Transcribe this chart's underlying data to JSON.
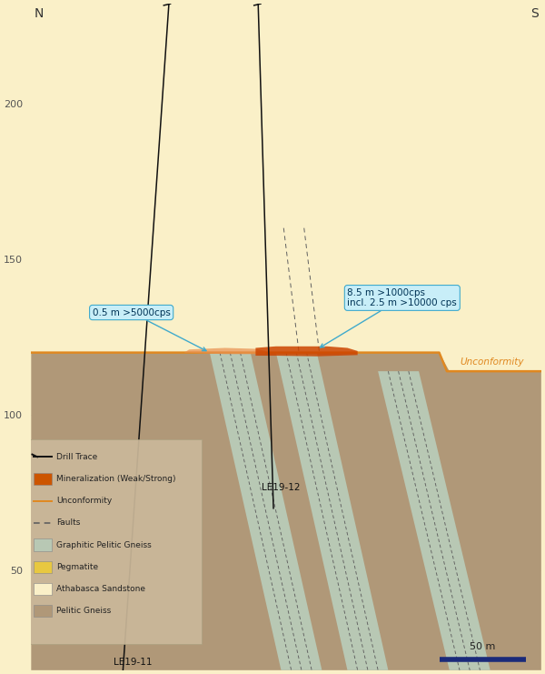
{
  "fig_width": 6.0,
  "fig_height": 7.41,
  "dpi": 100,
  "bg_color": "#faf0c8",
  "pelitic_color": "#b09878",
  "graphitic_color": "#b8c8b4",
  "sandstone_color": "#faf0c8",
  "unconformity_line_color": "#e08820",
  "mineralization_weak_color": "#e89050",
  "mineralization_strong_color": "#cc4400",
  "drill_trace_color": "#111111",
  "fault_color": "#606060",
  "annotation_box_color": "#c8eef8",
  "annotation_edge_color": "#40aacc",
  "annotation_text_color": "#003355",
  "label_N": "N",
  "label_S": "S",
  "unconformity_label": "Unconformity",
  "drill_label_12": "LE19-12",
  "drill_label_11": "LE19-11",
  "ann1_text": "0.5 m >5000cps",
  "ann2_line1": "8.5 m >1000cps",
  "ann2_line2": "incl. 2.5 m >10000 cps",
  "scalebar_label": "50 m",
  "legend_items": [
    {
      "label": "Drill Trace",
      "type": "line_arrow",
      "color": "#111111"
    },
    {
      "label": "Mineralization (Weak/Strong)",
      "type": "rect",
      "color": "#cc5500"
    },
    {
      "label": "Unconformity",
      "type": "line",
      "color": "#e08820"
    },
    {
      "label": "Faults",
      "type": "dashed",
      "color": "#606060"
    },
    {
      "label": "Graphitic Pelitic Gneiss",
      "type": "rect",
      "color": "#b8c8b4"
    },
    {
      "label": "Pegmatite",
      "type": "rect",
      "color": "#e8c840"
    },
    {
      "label": "Athabasca Sandstone",
      "type": "rect",
      "color": "#faf0c8"
    },
    {
      "label": "Pelitic Gneiss",
      "type": "rect",
      "color": "#b09878"
    }
  ],
  "yticks": [
    50,
    100,
    150,
    200
  ],
  "ylim": [
    18,
    232
  ],
  "xlim": [
    0,
    100
  ]
}
